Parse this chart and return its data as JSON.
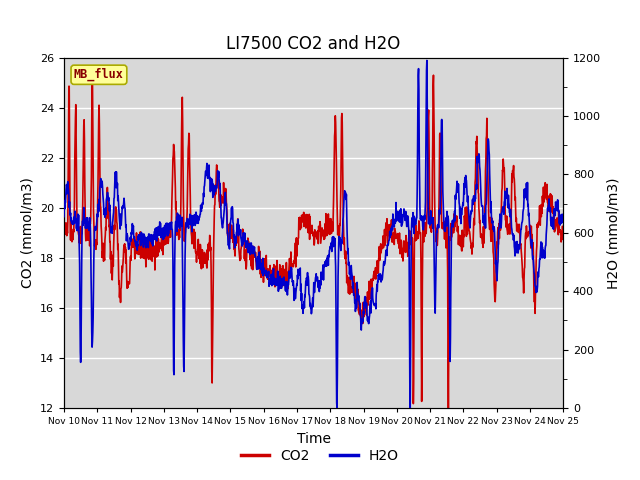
{
  "title": "LI7500 CO2 and H2O",
  "xlabel": "Time",
  "ylabel_left": "CO2 (mmol/m3)",
  "ylabel_right": "H2O (mmol/m3)",
  "xlim_days": [
    0,
    15
  ],
  "ylim_left": [
    12,
    26
  ],
  "ylim_right": [
    0,
    1200
  ],
  "yticks_left": [
    12,
    14,
    16,
    18,
    20,
    22,
    24,
    26
  ],
  "yticks_right": [
    0,
    200,
    400,
    600,
    800,
    1000,
    1200
  ],
  "xtick_labels": [
    "Nov 10",
    "Nov 11",
    "Nov 12",
    "Nov 13",
    "Nov 14",
    "Nov 15",
    "Nov 16",
    "Nov 17",
    "Nov 18",
    "Nov 19",
    "Nov 20",
    "Nov 21",
    "Nov 22",
    "Nov 23",
    "Nov 24",
    "Nov 25"
  ],
  "co2_color": "#CC0000",
  "h2o_color": "#0000CC",
  "plot_bg_color": "#D8D8D8",
  "grid_color": "#FFFFFF",
  "annotation_text": "MB_flux",
  "annotation_bg": "#FFFF99",
  "annotation_border": "#AAAA00",
  "annotation_text_color": "#880000",
  "title_fontsize": 12,
  "axis_label_fontsize": 10,
  "tick_fontsize": 8,
  "legend_fontsize": 10,
  "linewidth": 1.2
}
